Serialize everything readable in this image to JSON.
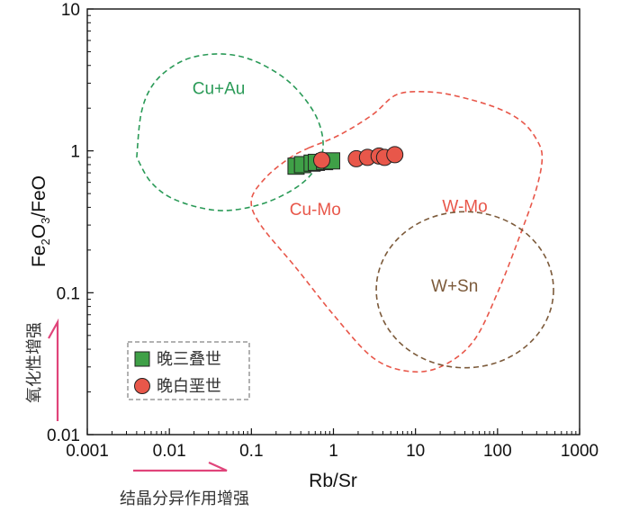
{
  "chart_data": {
    "type": "scatter",
    "x_scale": "log",
    "y_scale": "log",
    "xlim": [
      0.001,
      1000
    ],
    "ylim": [
      0.01,
      10
    ],
    "xlabel": "Rb/Sr",
    "ylabel_parts": [
      "Fe",
      "2",
      "O",
      "3",
      "/FeO"
    ],
    "x_ticks": [
      {
        "value": 0.001,
        "label": "0.001"
      },
      {
        "value": 0.01,
        "label": "0.01"
      },
      {
        "value": 0.1,
        "label": "0.1"
      },
      {
        "value": 1,
        "label": "1"
      },
      {
        "value": 10,
        "label": "10"
      },
      {
        "value": 100,
        "label": "100"
      },
      {
        "value": 1000,
        "label": "1000"
      }
    ],
    "y_ticks": [
      {
        "value": 0.01,
        "label": "0.01"
      },
      {
        "value": 0.1,
        "label": "0.1"
      },
      {
        "value": 1,
        "label": "1"
      },
      {
        "value": 10,
        "label": "10"
      }
    ],
    "series": [
      {
        "name": "晚三叠世",
        "marker": "square",
        "color": "#3fa047",
        "points": [
          [
            0.35,
            0.78
          ],
          [
            0.42,
            0.8
          ],
          [
            0.55,
            0.82
          ],
          [
            0.62,
            0.83
          ],
          [
            0.78,
            0.84
          ],
          [
            0.95,
            0.85
          ]
        ]
      },
      {
        "name": "晚白垩世",
        "marker": "circle",
        "color": "#e8574a",
        "points": [
          [
            0.72,
            0.86
          ],
          [
            1.9,
            0.88
          ],
          [
            2.6,
            0.9
          ],
          [
            3.6,
            0.92
          ],
          [
            4.2,
            0.9
          ],
          [
            5.6,
            0.94
          ]
        ]
      }
    ],
    "regions": [
      {
        "name": "Cu+Au",
        "color": "#2a9a57",
        "path": [
          [
            0.004,
            0.9
          ],
          [
            0.0045,
            1.8
          ],
          [
            0.006,
            2.8
          ],
          [
            0.01,
            3.8
          ],
          [
            0.02,
            4.6
          ],
          [
            0.05,
            4.8
          ],
          [
            0.12,
            4.2
          ],
          [
            0.3,
            3.0
          ],
          [
            0.6,
            1.8
          ],
          [
            0.75,
            1.1
          ],
          [
            0.6,
            0.75
          ],
          [
            0.35,
            0.55
          ],
          [
            0.13,
            0.42
          ],
          [
            0.04,
            0.38
          ],
          [
            0.012,
            0.45
          ],
          [
            0.006,
            0.6
          ],
          [
            0.004,
            0.9
          ]
        ],
        "label_pos": [
          0.04,
          2.7
        ]
      },
      {
        "name": "Cu-Mo",
        "color": "#e8574a",
        "path": [
          [
            0.5,
            1.05
          ],
          [
            1.2,
            1.3
          ],
          [
            3,
            1.8
          ],
          [
            6,
            2.5
          ],
          [
            15,
            2.6
          ],
          [
            35,
            2.4
          ],
          [
            100,
            2.0
          ],
          [
            200,
            1.6
          ],
          [
            300,
            1.2
          ],
          [
            350,
            0.9
          ],
          [
            300,
            0.55
          ],
          [
            200,
            0.28
          ],
          [
            100,
            0.1
          ],
          [
            50,
            0.045
          ],
          [
            20,
            0.03
          ],
          [
            8,
            0.028
          ],
          [
            3,
            0.035
          ],
          [
            1,
            0.07
          ],
          [
            0.35,
            0.15
          ],
          [
            0.13,
            0.3
          ],
          [
            0.1,
            0.45
          ],
          [
            0.15,
            0.65
          ],
          [
            0.3,
            0.9
          ],
          [
            0.5,
            1.05
          ]
        ],
        "label_pos": [
          0.6,
          0.38
        ]
      },
      {
        "name": "W-Mo",
        "color": "#e8574a",
        "label_pos": [
          40,
          0.4
        ]
      },
      {
        "name": "W+Sn",
        "color": "#7c5a3a",
        "ellipse": {
          "center": [
            40,
            0.105
          ],
          "rx_decades": 1.08,
          "ry_decades": 0.55
        },
        "label_pos": [
          30,
          0.11
        ]
      }
    ],
    "legend": {
      "position": "bottom-left",
      "entries": [
        "晚三叠世",
        "晚白垩世"
      ]
    },
    "annotations": {
      "vertical_arrow_text": "氧化性增强",
      "horizontal_arrow_text": "结晶分异作用增强",
      "arrow_color": "#e0447a"
    }
  }
}
